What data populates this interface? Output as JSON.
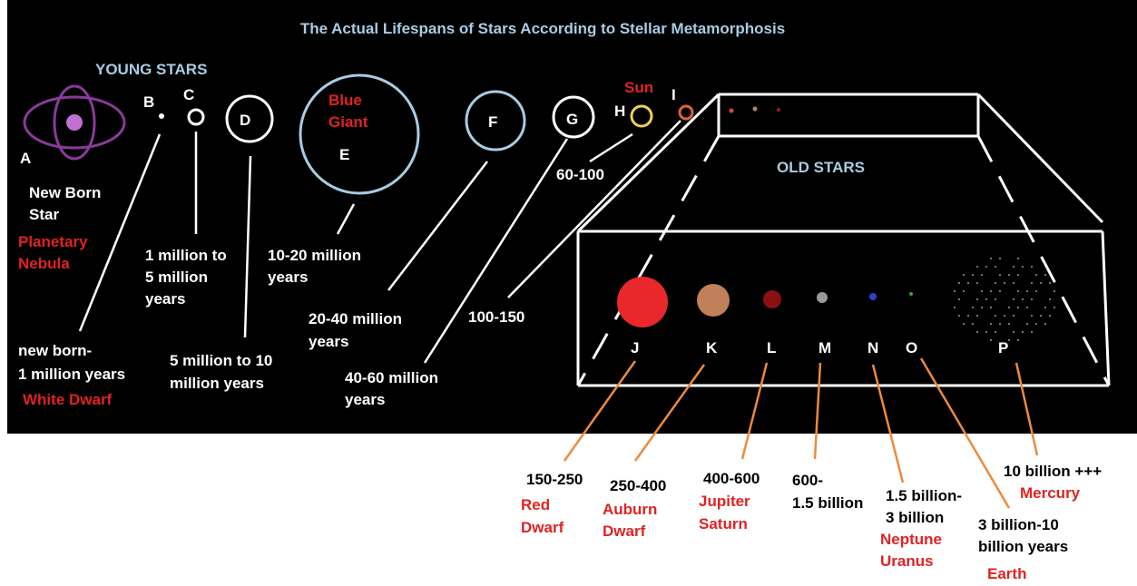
{
  "title": "The Actual Lifespans of Stars According to Stellar Metamorphosis",
  "young_label": "YOUNG STARS",
  "old_label": "OLD STARS",
  "stars": [
    {
      "letter": "A",
      "caption": [
        "New Born",
        "Star"
      ],
      "name": [
        "Planetary",
        "Nebula"
      ]
    },
    {
      "letter": "B",
      "lifespan": [
        "new born-",
        "1 million years"
      ],
      "name": [
        "White Dwarf"
      ]
    },
    {
      "letter": "C",
      "lifespan": [
        "1 million to",
        "5 million",
        "years"
      ]
    },
    {
      "letter": "D",
      "lifespan": [
        "5 million to 10",
        "million years"
      ]
    },
    {
      "letter": "E",
      "lifespan": [
        "10-20 million",
        "years"
      ],
      "name": [
        "Blue",
        "Giant"
      ]
    },
    {
      "letter": "F",
      "lifespan": [
        "20-40 million",
        "years"
      ]
    },
    {
      "letter": "G",
      "lifespan": [
        "40-60 million",
        "years"
      ]
    },
    {
      "letter": "H",
      "lifespan": [
        "60-100"
      ],
      "name": [
        "Sun"
      ]
    },
    {
      "letter": "I",
      "lifespan": [
        "100-150"
      ]
    },
    {
      "letter": "J",
      "lifespan": [
        "150-250"
      ],
      "name": [
        "Red",
        "Dwarf"
      ]
    },
    {
      "letter": "K",
      "lifespan": [
        "250-400"
      ],
      "name": [
        "Auburn",
        "Dwarf"
      ]
    },
    {
      "letter": "L",
      "lifespan": [
        "400-600"
      ],
      "name": [
        "Jupiter",
        "Saturn"
      ]
    },
    {
      "letter": "M",
      "lifespan": [
        "600-",
        "1.5 billion"
      ]
    },
    {
      "letter": "N",
      "lifespan": [
        "1.5 billion-",
        "3 billion"
      ],
      "name": [
        "Neptune",
        "Uranus"
      ]
    },
    {
      "letter": "O",
      "lifespan": [
        "3 billion-10",
        "billion years"
      ],
      "name": [
        "Earth"
      ]
    },
    {
      "letter": "P",
      "lifespan": [
        "10 billion +++"
      ],
      "name": [
        "Mercury"
      ]
    }
  ]
}
